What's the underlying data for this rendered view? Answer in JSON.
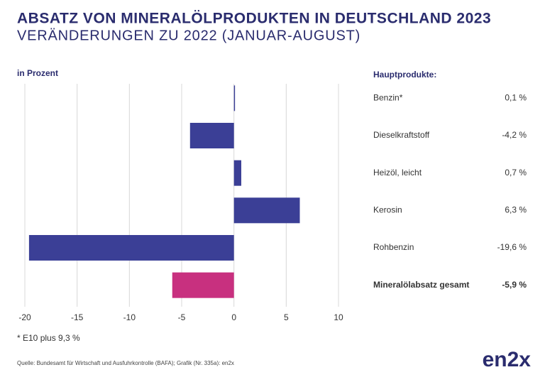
{
  "chart_data": {
    "type": "barh",
    "title": "ABSATZ VON MINERALÖLPRODUKTEN IN DEUTSCHLAND 2023",
    "subtitle": "VERÄNDERUNGEN ZU 2022 (JANUAR-AUGUST)",
    "axis_label": "in Prozent",
    "table_header": "Hauptprodukte:",
    "categories": [
      "Benzin*",
      "Dieselkraftstoff",
      "Heizöl, leicht",
      "Kerosin",
      "Rohbenzin",
      "Mineralölabsatz gesamt"
    ],
    "values": [
      0.1,
      -4.2,
      0.7,
      6.3,
      -19.6,
      -5.9
    ],
    "value_labels": [
      "0,1 %",
      "-4,2 %",
      "0,7 %",
      "6,3 %",
      "-19,6 %",
      "-5,9 %"
    ],
    "colors": [
      "#3b3f96",
      "#3b3f96",
      "#3b3f96",
      "#3b3f96",
      "#3b3f96",
      "#c8307f"
    ],
    "xlim": [
      -20,
      10
    ],
    "xticks": [
      -20,
      -15,
      -10,
      -5,
      0,
      5,
      10
    ],
    "grid": true,
    "footnote": "* E10 plus 9,3 %",
    "source": "Quelle: Bundesamt für Wirtschaft und Ausfuhrkontrolle (BAFA); Grafik (Nr. 335a): en2x",
    "logo": "en2x"
  }
}
